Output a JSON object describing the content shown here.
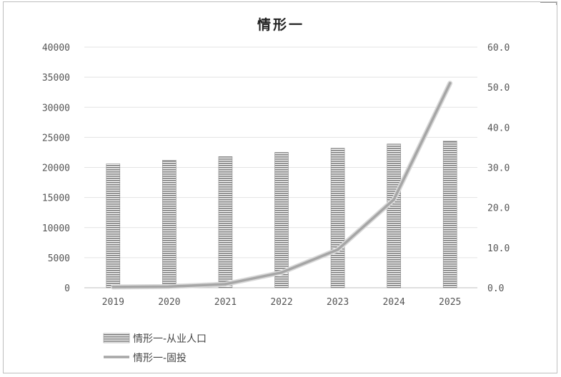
{
  "chart_data": {
    "type": "bar",
    "title": "情形一",
    "categories": [
      "2019",
      "2020",
      "2021",
      "2022",
      "2023",
      "2024",
      "2025"
    ],
    "series": [
      {
        "name": "情形一-从业人口",
        "type": "bar",
        "axis": "left",
        "color": "#8c8c8c",
        "values": [
          20600,
          21200,
          21800,
          22500,
          23200,
          23900,
          24400
        ]
      },
      {
        "name": "情形一-固投",
        "type": "line",
        "axis": "right",
        "color": "#a6a6a6",
        "values": [
          0.2,
          0.3,
          0.9,
          3.8,
          9.5,
          22.0,
          51.0
        ]
      }
    ],
    "y_left": {
      "min": 0,
      "max": 40000,
      "step": 5000,
      "tick_labels": [
        "0",
        "5000",
        "10000",
        "15000",
        "20000",
        "25000",
        "30000",
        "35000",
        "40000"
      ]
    },
    "y_right": {
      "min": 0,
      "max": 60,
      "step": 10,
      "tick_labels": [
        "0.0",
        "10.0",
        "20.0",
        "30.0",
        "40.0",
        "50.0",
        "60.0"
      ]
    },
    "grid": true,
    "legend": "bottom-left"
  }
}
